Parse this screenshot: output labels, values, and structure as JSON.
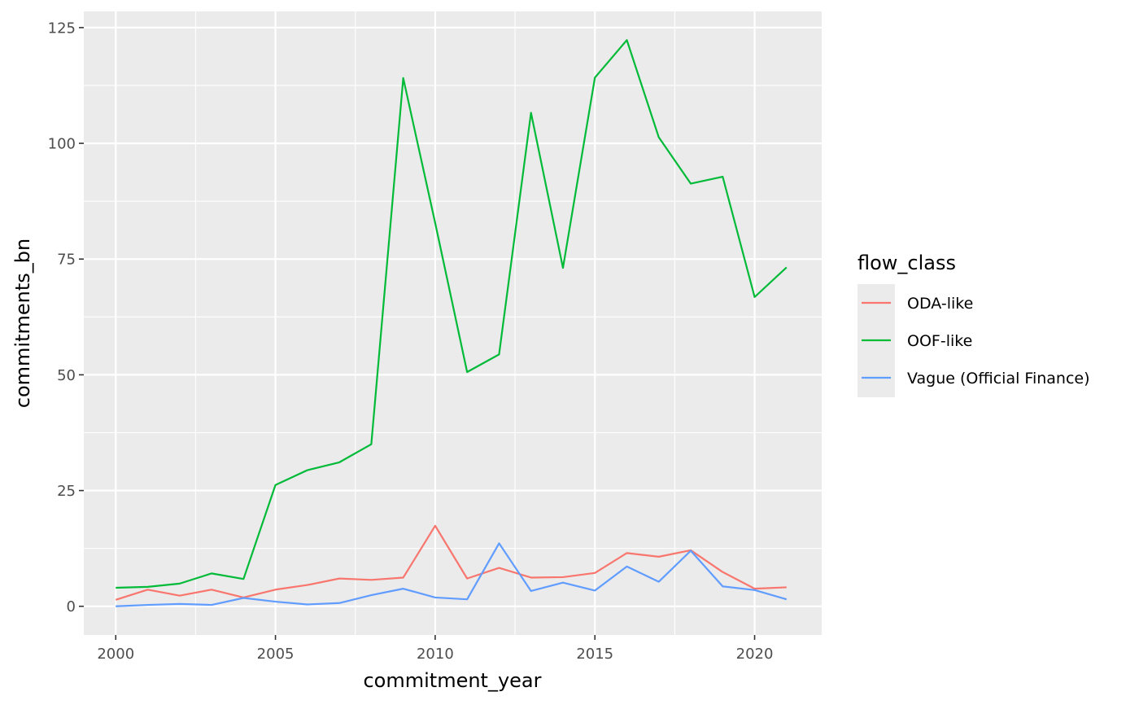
{
  "chart_data": {
    "type": "line",
    "xlabel": "commitment_year",
    "ylabel": "commitments_bn",
    "xlim": [
      1999,
      2022.1
    ],
    "ylim": [
      -6.2,
      128.5
    ],
    "x_ticks": [
      2000,
      2005,
      2010,
      2015,
      2020
    ],
    "x_tick_labels": [
      "2000",
      "2005",
      "2010",
      "2015",
      "2020"
    ],
    "y_ticks": [
      0,
      25,
      50,
      75,
      100,
      125
    ],
    "y_tick_labels": [
      "0",
      "25",
      "50",
      "75",
      "100",
      "125"
    ],
    "grid": true,
    "background": "#EBEBEB",
    "legend": {
      "title": "flow_class",
      "position": "right"
    },
    "x": [
      2000,
      2001,
      2002,
      2003,
      2004,
      2005,
      2006,
      2007,
      2008,
      2009,
      2010,
      2011,
      2012,
      2013,
      2014,
      2015,
      2016,
      2017,
      2018,
      2019,
      2020,
      2021
    ],
    "series": [
      {
        "name": "ODA-like",
        "color": "#F8766D",
        "values": [
          1.4,
          3.6,
          2.3,
          3.6,
          1.9,
          3.6,
          4.6,
          6.0,
          5.7,
          6.2,
          17.4,
          6.0,
          8.3,
          6.2,
          6.3,
          7.2,
          11.5,
          10.7,
          12.1,
          7.4,
          3.8,
          4.1
        ]
      },
      {
        "name": "OOF-like",
        "color": "#00BA38",
        "values": [
          4.0,
          4.2,
          4.9,
          7.1,
          5.9,
          26.2,
          29.4,
          31.1,
          35.0,
          114.1,
          82.8,
          50.6,
          54.4,
          106.6,
          73.1,
          114.2,
          122.3,
          101.3,
          91.3,
          92.8,
          66.8,
          73.2
        ]
      },
      {
        "name": "Vague (Official Finance)",
        "color": "#619CFF",
        "values": [
          0.0,
          0.3,
          0.5,
          0.3,
          1.8,
          1.0,
          0.4,
          0.7,
          2.4,
          3.8,
          1.9,
          1.5,
          13.6,
          3.3,
          5.1,
          3.4,
          8.6,
          5.3,
          12.0,
          4.3,
          3.5,
          1.5
        ]
      }
    ]
  }
}
